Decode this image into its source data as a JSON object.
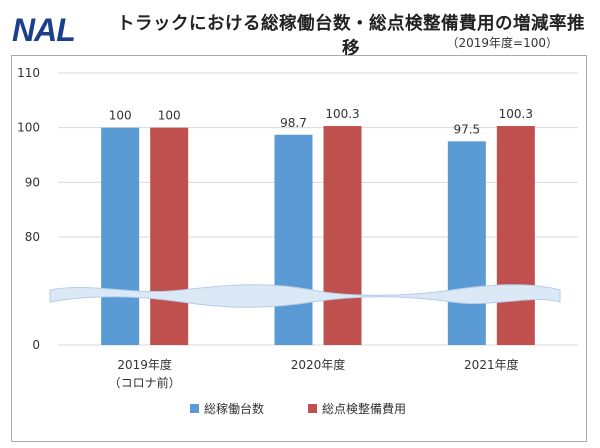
{
  "header": {
    "logo_text": "NAL",
    "title": "トラックにおける総稼働台数・総点検整備費用の増減率推移",
    "subtitle": "（2019年度=100）"
  },
  "colors": {
    "logo": "#1b3f8b",
    "series1": "#5b9bd5",
    "series2": "#c0504d",
    "grid": "#d9d9d9",
    "break": "#dbe9f6"
  },
  "chart_data": {
    "type": "bar",
    "title": "トラックにおける総稼働台数・総点検整備費用の増減率推移",
    "subtitle": "（2019年度=100）",
    "categories": [
      [
        "2019年度",
        "（コロナ前）"
      ],
      [
        "2020年度"
      ],
      [
        "2021年度"
      ]
    ],
    "series": [
      {
        "name": "総稼働台数",
        "values": [
          100,
          98.7,
          97.5
        ],
        "labels": [
          "100",
          "98.7",
          "97.5"
        ],
        "color": "#5b9bd5"
      },
      {
        "name": "総点検整備費用",
        "values": [
          100,
          100.3,
          100.3
        ],
        "labels": [
          "100",
          "100.3",
          "100.3"
        ],
        "color": "#c0504d"
      }
    ],
    "y_ticks": [
      0,
      80,
      90,
      100,
      110
    ],
    "y_tick_labels": [
      "0",
      "80",
      "90",
      "100",
      "110"
    ],
    "ylim": [
      0,
      110
    ],
    "axis_break": [
      0,
      80
    ],
    "grid": true,
    "legend": "bottom-center"
  }
}
